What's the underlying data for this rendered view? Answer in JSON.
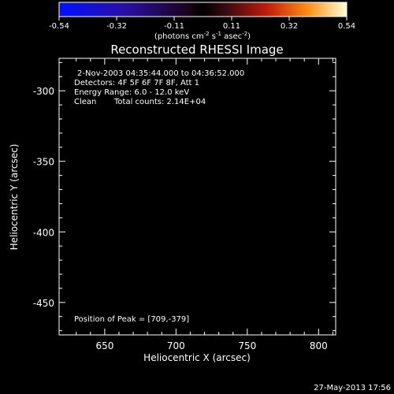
{
  "colorbar": {
    "tick_labels": [
      "-0.54",
      "-0.32",
      "-0.11",
      "0.11",
      "0.32",
      "0.54"
    ],
    "unit_prefix": "(photons cm",
    "unit_exp1": "-2",
    "unit_mid1": " s",
    "unit_exp2": "-1",
    "unit_mid2": " asec",
    "unit_exp3": "-2",
    "unit_suffix": ")",
    "range": [
      -0.54,
      0.54
    ]
  },
  "title": "Reconstructed RHESSI Image",
  "info": {
    "line1": "2-Nov-2003 04:35:44.000 to 04:36:52.000",
    "line2": "Detectors: 4F 5F 6F 7F 8F, Att 1",
    "line3": "Energy Range: 6.0 - 12.0 keV",
    "line4_method": "Clean",
    "line4_counts": "Total counts: 2.14E+04"
  },
  "peak_label": "Position of Peak = [709,-379]",
  "xaxis": {
    "label": "Heliocentric X (arcsec)",
    "ticks": [
      "650",
      "700",
      "750",
      "800"
    ],
    "tick_values": [
      650,
      700,
      750,
      800
    ],
    "range": [
      618,
      812
    ]
  },
  "yaxis": {
    "label": "Heliocentric Y (arcsec)",
    "ticks": [
      "-300",
      "-350",
      "-400",
      "-450"
    ],
    "tick_values": [
      -300,
      -350,
      -400,
      -450
    ],
    "range": [
      -473,
      -277
    ]
  },
  "timestamp": "27-May-2013 17:56",
  "image": {
    "peak_position": [
      709,
      -379
    ],
    "colormap": "hot"
  }
}
